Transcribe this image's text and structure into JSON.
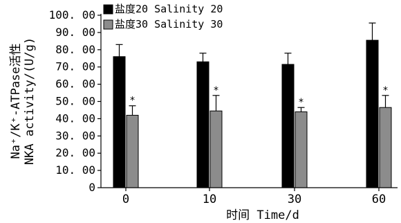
{
  "chart_data": {
    "type": "bar",
    "categories": [
      "0",
      "10",
      "30",
      "60"
    ],
    "series": [
      {
        "name": "盐度20 Salinity 20",
        "values": [
          76.0,
          73.0,
          71.5,
          85.5
        ],
        "errors": [
          7.0,
          5.0,
          6.5,
          10.0
        ],
        "color": "#000000",
        "significance": [
          "",
          "",
          "",
          ""
        ]
      },
      {
        "name": "盐度30 Salinity 30",
        "values": [
          42.0,
          44.5,
          44.0,
          46.5
        ],
        "errors": [
          5.5,
          9.0,
          2.5,
          7.0
        ],
        "color": "#8c8c8c",
        "significance": [
          "*",
          "*",
          "*",
          "*"
        ]
      }
    ],
    "xlabel": "时间 Time/d",
    "ylabel_line1": "Na⁺/K⁺-ATPase活性",
    "ylabel_line2": "NKA activity/(U/g)",
    "ylim": [
      0,
      100
    ],
    "yticks": [
      "0",
      "10. 00",
      "20. 00",
      "30. 00",
      "40. 00",
      "50. 00",
      "60. 00",
      "70. 00",
      "80. 00",
      "90. 00",
      "100. 00"
    ],
    "yticks_values": [
      0,
      10,
      20,
      30,
      40,
      50,
      60,
      70,
      80,
      90,
      100
    ],
    "legend_position": "top-left",
    "grid": false
  }
}
